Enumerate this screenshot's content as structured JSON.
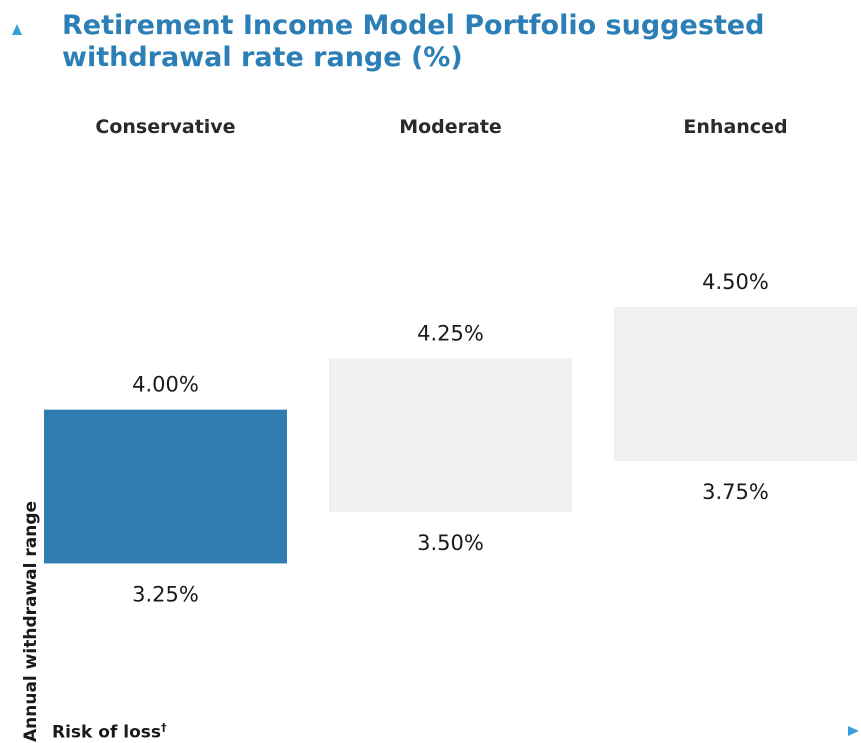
{
  "chart_data": {
    "type": "bar",
    "subtype": "floating-range",
    "title": "Retirement Income Model Portfolio suggested withdrawal rate range (%)",
    "ylabel": "Annual withdrawal range",
    "xlabel": "Risk of loss",
    "xlabel_marker": "†",
    "categories": [
      "Conservative",
      "Moderate",
      "Enhanced"
    ],
    "low": [
      3.25,
      3.5,
      3.75
    ],
    "high": [
      4.0,
      4.25,
      4.5
    ],
    "low_labels": [
      "3.25%",
      "3.50%",
      "3.75%"
    ],
    "high_labels": [
      "4.00%",
      "4.25%",
      "4.50%"
    ],
    "highlight_index": 0,
    "ylim": [
      2.34,
      5.12
    ],
    "grid": false,
    "colors": {
      "title": "#2b7fb6",
      "highlight_bar": "#2f7db0",
      "other_bar": "#f0f0f0",
      "axis_arrow": "#2b7fb6"
    }
  }
}
